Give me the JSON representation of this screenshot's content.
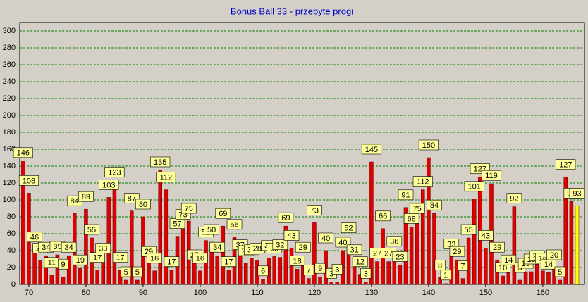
{
  "chart_data": {
    "type": "bar",
    "title": "Bonus Ball 33 - przebyte progi",
    "x": [
      69,
      70,
      71,
      72,
      73,
      74,
      75,
      76,
      77,
      78,
      79,
      80,
      81,
      82,
      83,
      84,
      85,
      86,
      87,
      88,
      89,
      90,
      91,
      92,
      93,
      94,
      95,
      96,
      97,
      98,
      99,
      100,
      101,
      102,
      103,
      104,
      105,
      106,
      107,
      108,
      109,
      110,
      111,
      112,
      113,
      114,
      115,
      116,
      117,
      118,
      119,
      120,
      121,
      122,
      123,
      124,
      125,
      126,
      127,
      128,
      129,
      130,
      131,
      132,
      133,
      134,
      135,
      136,
      137,
      138,
      139,
      140,
      141,
      142,
      143,
      144,
      145,
      146,
      147,
      148,
      149,
      150,
      151,
      152,
      153,
      154,
      155,
      156,
      157,
      158,
      159,
      160,
      161,
      162,
      163,
      164,
      165,
      166
    ],
    "values": [
      146,
      108,
      46,
      28,
      34,
      11,
      35,
      9,
      34,
      84,
      19,
      89,
      55,
      17,
      33,
      103,
      123,
      17,
      5,
      87,
      5,
      80,
      29,
      16,
      135,
      112,
      17,
      57,
      73,
      75,
      25,
      16,
      52,
      50,
      34,
      69,
      17,
      56,
      37,
      25,
      31,
      28,
      6,
      31,
      33,
      32,
      69,
      43,
      18,
      29,
      7,
      73,
      9,
      40,
      3,
      3,
      40,
      52,
      31,
      12,
      3,
      145,
      27,
      66,
      27,
      36,
      23,
      91,
      68,
      75,
      112,
      150,
      84,
      8,
      1,
      33,
      29,
      7,
      55,
      101,
      127,
      43,
      119,
      29,
      10,
      14,
      92,
      5,
      15,
      15,
      24,
      16,
      14,
      20,
      5,
      127,
      98,
      93
    ],
    "color": "#e00000",
    "last_color": "#ffff00",
    "xlim": [
      68.4,
      167.3
    ],
    "xticks": [
      70,
      80,
      90,
      100,
      110,
      120,
      130,
      140,
      150,
      160
    ],
    "ylim": [
      0,
      310
    ],
    "yticks": [
      0,
      20,
      40,
      60,
      80,
      100,
      120,
      140,
      160,
      180,
      200,
      220,
      240,
      260,
      280,
      300
    ],
    "grid": true
  }
}
